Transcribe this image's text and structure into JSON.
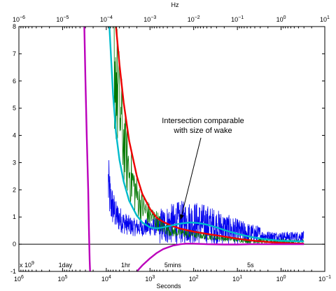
{
  "chart_data": {
    "type": "line",
    "title": "",
    "xlabel": "Seconds",
    "x2label": "Hz",
    "ylabel": "",
    "y_multiplier": "x 10",
    "y_multiplier_exp": "9",
    "x_scale": "log",
    "x_reversed": true,
    "xlim": [
      1000000,
      0.1
    ],
    "ylim": [
      -1,
      8
    ],
    "grid": false,
    "x_ticks": [
      {
        "value": 1000000,
        "base": "10",
        "exp": "6"
      },
      {
        "value": 100000,
        "base": "10",
        "exp": "5"
      },
      {
        "value": 10000,
        "base": "10",
        "exp": "4"
      },
      {
        "value": 1000,
        "base": "10",
        "exp": "3"
      },
      {
        "value": 100,
        "base": "10",
        "exp": "2"
      },
      {
        "value": 10,
        "base": "10",
        "exp": "1"
      },
      {
        "value": 1,
        "base": "10",
        "exp": "0"
      },
      {
        "value": 0.1,
        "base": "10",
        "exp": "−1"
      }
    ],
    "x2_ticks": [
      {
        "value": 1e-06,
        "base": "10",
        "exp": "−6"
      },
      {
        "value": 1e-05,
        "base": "10",
        "exp": "−5"
      },
      {
        "value": 0.0001,
        "base": "10",
        "exp": "−4"
      },
      {
        "value": 0.001,
        "base": "10",
        "exp": "−3"
      },
      {
        "value": 0.01,
        "base": "10",
        "exp": "−2"
      },
      {
        "value": 0.1,
        "base": "10",
        "exp": "−1"
      },
      {
        "value": 1,
        "base": "10",
        "exp": "0"
      },
      {
        "value": 10,
        "base": "10",
        "exp": "1"
      }
    ],
    "y_ticks": [
      "-1",
      "0",
      "1",
      "2",
      "3",
      "4",
      "5",
      "6",
      "7",
      "8"
    ],
    "time_markers": [
      {
        "label": "1day",
        "seconds": 86400
      },
      {
        "label": "1hr",
        "seconds": 3600
      },
      {
        "label": "5mins",
        "seconds": 300
      },
      {
        "label": "5s",
        "seconds": 5
      }
    ],
    "annotation": {
      "lines": [
        "Intersection comparable",
        "with size of wake"
      ],
      "target": {
        "x": 200,
        "y": 0.9
      }
    },
    "series": [
      {
        "color": "#0000ee",
        "style": "noisy",
        "points": [
          [
            9000,
            2.1
          ],
          [
            8000,
            1.5
          ],
          [
            6000,
            1.0
          ],
          [
            4000,
            0.75
          ],
          [
            2500,
            0.6
          ],
          [
            1500,
            0.58
          ],
          [
            1000,
            0.6
          ],
          [
            500,
            0.62
          ],
          [
            300,
            0.68
          ],
          [
            200,
            0.72
          ],
          [
            100,
            0.72
          ],
          [
            50,
            0.66
          ],
          [
            20,
            0.52
          ],
          [
            10,
            0.42
          ],
          [
            5,
            0.34
          ],
          [
            2,
            0.28
          ],
          [
            1,
            0.26
          ],
          [
            0.5,
            0.26
          ],
          [
            0.3,
            0.28
          ]
        ]
      },
      {
        "color": "#007700",
        "style": "noisy",
        "points": [
          [
            7500,
            8.0
          ],
          [
            6000,
            5.8
          ],
          [
            4000,
            3.6
          ],
          [
            3000,
            2.6
          ],
          [
            2000,
            1.7
          ],
          [
            1500,
            1.3
          ],
          [
            1000,
            1.0
          ],
          [
            700,
            0.85
          ],
          [
            500,
            0.6
          ],
          [
            300,
            0.45
          ],
          [
            200,
            0.4
          ],
          [
            100,
            0.35
          ],
          [
            50,
            0.28
          ],
          [
            20,
            0.2
          ],
          [
            10,
            0.16
          ],
          [
            5,
            0.12
          ],
          [
            2,
            0.1
          ],
          [
            1,
            0.09
          ],
          [
            0.5,
            0.08
          ],
          [
            0.3,
            0.08
          ]
        ]
      },
      {
        "color": "#ee0000",
        "style": "smooth",
        "points": [
          [
            6000,
            8.0
          ],
          [
            5000,
            6.6
          ],
          [
            4000,
            5.2
          ],
          [
            3000,
            3.8
          ],
          [
            2000,
            2.5
          ],
          [
            1500,
            1.85
          ],
          [
            1000,
            1.3
          ],
          [
            700,
            0.97
          ],
          [
            500,
            0.82
          ],
          [
            300,
            0.66
          ],
          [
            200,
            0.57
          ],
          [
            100,
            0.46
          ],
          [
            50,
            0.38
          ],
          [
            20,
            0.28
          ],
          [
            10,
            0.2
          ],
          [
            5,
            0.14
          ],
          [
            2,
            0.08
          ],
          [
            1,
            0.05
          ],
          [
            0.5,
            0.03
          ],
          [
            0.3,
            0.02
          ]
        ]
      },
      {
        "color": "#00bbcc",
        "style": "smooth",
        "points": [
          [
            8500,
            8.0
          ],
          [
            7000,
            5.5
          ],
          [
            6000,
            4.1
          ],
          [
            5000,
            3.1
          ],
          [
            4000,
            2.3
          ],
          [
            3000,
            1.6
          ],
          [
            2000,
            1.05
          ],
          [
            1500,
            0.8
          ],
          [
            1000,
            0.62
          ],
          [
            700,
            0.58
          ],
          [
            500,
            0.62
          ],
          [
            300,
            0.7
          ],
          [
            200,
            0.76
          ],
          [
            120,
            0.8
          ],
          [
            80,
            0.78
          ],
          [
            50,
            0.72
          ],
          [
            30,
            0.62
          ],
          [
            20,
            0.52
          ],
          [
            10,
            0.38
          ],
          [
            5,
            0.27
          ],
          [
            2,
            0.17
          ],
          [
            1,
            0.13
          ],
          [
            0.5,
            0.11
          ],
          [
            0.3,
            0.1
          ]
        ]
      },
      {
        "color": "#bb00bb",
        "style": "smooth",
        "points": [
          [
            32000,
            8.2
          ],
          [
            30000,
            6.0
          ],
          [
            28000,
            4.0
          ],
          [
            26000,
            2.0
          ],
          [
            25000,
            0.6
          ],
          [
            24000,
            -0.6
          ],
          [
            23500,
            -1.0
          ]
        ]
      },
      {
        "color": "#bb00bb",
        "style": "smooth",
        "points": [
          [
            2000,
            -1.0
          ],
          [
            1500,
            -0.78
          ],
          [
            1000,
            -0.52
          ],
          [
            700,
            -0.32
          ],
          [
            500,
            -0.18
          ],
          [
            300,
            -0.05
          ],
          [
            200,
            0.0
          ],
          [
            150,
            0.02
          ],
          [
            100,
            0.02
          ],
          [
            50,
            0.0
          ],
          [
            20,
            -0.01
          ],
          [
            10,
            -0.01
          ],
          [
            5,
            0.0
          ],
          [
            1,
            0.0
          ],
          [
            0.3,
            0.0
          ]
        ]
      }
    ]
  }
}
